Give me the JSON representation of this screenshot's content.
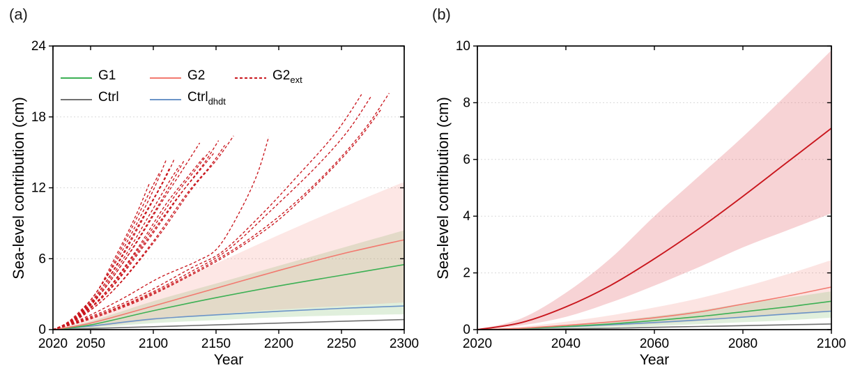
{
  "panels": [
    {
      "letter": "(a)"
    },
    {
      "letter": "(b)"
    }
  ],
  "legend": {
    "position": "top-left-inside-panel-a",
    "entries": [
      {
        "label": "G1",
        "sub": "",
        "color": "#3cb054",
        "style": "solid"
      },
      {
        "label": "G2",
        "sub": "",
        "color": "#f2796f",
        "style": "solid"
      },
      {
        "label": "G2",
        "sub": "ext",
        "color": "#c9161d",
        "style": "dashed"
      },
      {
        "label": "Ctrl",
        "sub": "",
        "color": "#707070",
        "style": "solid"
      },
      {
        "label": "Ctrl",
        "sub": "dhdt",
        "color": "#6b94c8",
        "style": "solid"
      }
    ]
  },
  "colors": {
    "g1_green": "#3cb054",
    "g2_salmon": "#f2796f",
    "g2ext_red": "#c9161d",
    "ctrl_gray": "#707070",
    "ctrl_dhdt_blue": "#6b94c8",
    "grid": "#d8d8d8",
    "axis": "#000000"
  },
  "chart_data": [
    {
      "type": "line",
      "title": "",
      "xlabel": "Year",
      "ylabel": "Sea-level contribution (cm)",
      "xlim": [
        2020,
        2300
      ],
      "ylim": [
        0,
        24
      ],
      "xticks": [
        2020,
        2050,
        2100,
        2150,
        2200,
        2250,
        2300
      ],
      "yticks": [
        0,
        6,
        12,
        18,
        24
      ],
      "gridlines_y": [
        6,
        12,
        18
      ],
      "grid": "dotted-horizontal",
      "bands": [
        {
          "name": "G1-range",
          "color": "#8cc37c",
          "opacity": 0.27,
          "x": [
            2020,
            2050,
            2100,
            2150,
            2200,
            2250,
            2300
          ],
          "lower": [
            0,
            0.15,
            0.55,
            0.8,
            1.05,
            1.2,
            1.3
          ],
          "upper": [
            0,
            0.7,
            2.4,
            3.9,
            5.4,
            6.9,
            8.4
          ]
        },
        {
          "name": "G2-range",
          "color": "#f2796f",
          "opacity": 0.18,
          "x": [
            2020,
            2050,
            2100,
            2150,
            2200,
            2250,
            2300
          ],
          "lower": [
            0,
            0.2,
            0.8,
            1.3,
            1.7,
            2.0,
            2.3
          ],
          "upper": [
            0,
            1.0,
            3.3,
            5.6,
            8.0,
            10.3,
            12.5
          ]
        }
      ],
      "series": [
        {
          "name": "Ctrl",
          "color": "#707070",
          "width": 1.6,
          "x": [
            2020,
            2050,
            2100,
            2150,
            2200,
            2250,
            2300
          ],
          "y": [
            0,
            0.1,
            0.25,
            0.4,
            0.55,
            0.7,
            0.85
          ]
        },
        {
          "name": "Ctrl_dhdt",
          "color": "#6b94c8",
          "width": 1.6,
          "x": [
            2020,
            2050,
            2100,
            2150,
            2200,
            2250,
            2300
          ],
          "y": [
            0,
            0.3,
            0.9,
            1.25,
            1.55,
            1.8,
            2.0
          ]
        },
        {
          "name": "G1",
          "color": "#3cb054",
          "width": 1.6,
          "x": [
            2020,
            2050,
            2100,
            2150,
            2200,
            2250,
            2300
          ],
          "y": [
            0,
            0.4,
            1.6,
            2.7,
            3.7,
            4.6,
            5.5
          ]
        },
        {
          "name": "G2",
          "color": "#f2796f",
          "width": 1.6,
          "x": [
            2020,
            2050,
            2100,
            2150,
            2200,
            2250,
            2300
          ],
          "y": [
            0,
            0.55,
            2.0,
            3.5,
            5.0,
            6.4,
            7.6
          ]
        }
      ],
      "ensemble": {
        "name": "G2_ext members",
        "color": "#c9161d",
        "width": 1.35,
        "dash": "4 3",
        "members": [
          [
            [
              2020,
              0
            ],
            [
              2030,
              0.5
            ],
            [
              2040,
              1.4
            ],
            [
              2055,
              3.2
            ],
            [
              2070,
              6.2
            ],
            [
              2085,
              9.4
            ],
            [
              2097,
              12.4
            ]
          ],
          [
            [
              2020,
              0
            ],
            [
              2030,
              0.45
            ],
            [
              2042,
              1.5
            ],
            [
              2060,
              4.0
            ],
            [
              2080,
              8.0
            ],
            [
              2095,
              11.2
            ],
            [
              2105,
              13.3
            ]
          ],
          [
            [
              2020,
              0
            ],
            [
              2032,
              0.6
            ],
            [
              2045,
              1.8
            ],
            [
              2065,
              4.8
            ],
            [
              2085,
              8.6
            ],
            [
              2100,
              11.8
            ],
            [
              2110,
              14.3
            ]
          ],
          [
            [
              2020,
              0
            ],
            [
              2032,
              0.5
            ],
            [
              2048,
              2.0
            ],
            [
              2068,
              5.0
            ],
            [
              2090,
              9.2
            ],
            [
              2105,
              12.0
            ],
            [
              2113,
              13.7
            ]
          ],
          [
            [
              2020,
              0
            ],
            [
              2033,
              0.6
            ],
            [
              2050,
              2.3
            ],
            [
              2072,
              5.6
            ],
            [
              2095,
              10.0
            ],
            [
              2110,
              12.9
            ],
            [
              2117,
              14.5
            ]
          ],
          [
            [
              2020,
              0
            ],
            [
              2034,
              0.7
            ],
            [
              2052,
              2.4
            ],
            [
              2075,
              5.8
            ],
            [
              2098,
              9.9
            ],
            [
              2112,
              12.4
            ],
            [
              2121,
              13.9
            ]
          ],
          [
            [
              2020,
              0
            ],
            [
              2034,
              0.6
            ],
            [
              2054,
              2.5
            ],
            [
              2078,
              6.0
            ],
            [
              2100,
              9.8
            ],
            [
              2115,
              12.5
            ],
            [
              2125,
              14.4
            ]
          ],
          [
            [
              2020,
              0
            ],
            [
              2035,
              0.8
            ],
            [
              2056,
              2.8
            ],
            [
              2082,
              6.6
            ],
            [
              2105,
              10.5
            ],
            [
              2122,
              13.3
            ],
            [
              2137,
              15.8
            ]
          ],
          [
            [
              2020,
              0
            ],
            [
              2035,
              0.7
            ],
            [
              2058,
              2.7
            ],
            [
              2085,
              6.5
            ],
            [
              2110,
              10.6
            ],
            [
              2128,
              13.0
            ],
            [
              2141,
              14.7
            ]
          ],
          [
            [
              2020,
              0
            ],
            [
              2036,
              0.8
            ],
            [
              2060,
              2.9
            ],
            [
              2088,
              6.8
            ],
            [
              2115,
              11.0
            ],
            [
              2132,
              13.3
            ],
            [
              2145,
              15.1
            ]
          ],
          [
            [
              2020,
              0
            ],
            [
              2036,
              0.7
            ],
            [
              2062,
              3.0
            ],
            [
              2090,
              6.9
            ],
            [
              2118,
              11.0
            ],
            [
              2135,
              13.2
            ],
            [
              2148,
              14.9
            ]
          ],
          [
            [
              2020,
              0
            ],
            [
              2037,
              0.8
            ],
            [
              2064,
              3.2
            ],
            [
              2094,
              7.3
            ],
            [
              2122,
              11.5
            ],
            [
              2140,
              14.0
            ],
            [
              2152,
              16.0
            ]
          ],
          [
            [
              2020,
              0
            ],
            [
              2037,
              0.7
            ],
            [
              2066,
              3.1
            ],
            [
              2098,
              7.2
            ],
            [
              2126,
              11.4
            ],
            [
              2145,
              13.8
            ],
            [
              2157,
              15.6
            ]
          ],
          [
            [
              2020,
              0
            ],
            [
              2038,
              0.8
            ],
            [
              2068,
              3.3
            ],
            [
              2102,
              7.6
            ],
            [
              2130,
              11.8
            ],
            [
              2150,
              14.3
            ],
            [
              2164,
              16.4
            ]
          ],
          [
            [
              2020,
              0
            ],
            [
              2045,
              1.0
            ],
            [
              2075,
              2.6
            ],
            [
              2105,
              4.4
            ],
            [
              2135,
              5.8
            ],
            [
              2152,
              7.0
            ],
            [
              2170,
              10.2
            ],
            [
              2183,
              13.2
            ],
            [
              2192,
              16.3
            ]
          ],
          [
            [
              2020,
              0
            ],
            [
              2050,
              1.1
            ],
            [
              2090,
              2.9
            ],
            [
              2130,
              5.2
            ],
            [
              2155,
              6.6
            ],
            [
              2185,
              9.6
            ],
            [
              2215,
              13.0
            ],
            [
              2245,
              16.6
            ],
            [
              2266,
              19.9
            ]
          ],
          [
            [
              2020,
              0
            ],
            [
              2050,
              1.0
            ],
            [
              2090,
              2.7
            ],
            [
              2130,
              4.9
            ],
            [
              2160,
              6.8
            ],
            [
              2195,
              10.2
            ],
            [
              2230,
              13.8
            ],
            [
              2255,
              16.8
            ],
            [
              2274,
              19.8
            ]
          ],
          [
            [
              2020,
              0
            ],
            [
              2050,
              0.9
            ],
            [
              2090,
              2.5
            ],
            [
              2130,
              4.6
            ],
            [
              2165,
              6.7
            ],
            [
              2200,
              9.3
            ],
            [
              2235,
              12.8
            ],
            [
              2262,
              15.9
            ],
            [
              2282,
              18.7
            ]
          ],
          [
            [
              2020,
              0
            ],
            [
              2050,
              1.0
            ],
            [
              2090,
              2.6
            ],
            [
              2135,
              5.0
            ],
            [
              2170,
              7.2
            ],
            [
              2205,
              10.0
            ],
            [
              2240,
              13.5
            ],
            [
              2268,
              16.9
            ],
            [
              2288,
              20.0
            ]
          ]
        ]
      }
    },
    {
      "type": "line",
      "title": "",
      "xlabel": "Year",
      "ylabel": "Sea-level contribution (cm)",
      "xlim": [
        2020,
        2100
      ],
      "ylim": [
        0,
        10
      ],
      "xticks": [
        2020,
        2040,
        2060,
        2080,
        2100
      ],
      "yticks": [
        0,
        2,
        4,
        6,
        8,
        10
      ],
      "gridlines_y": [
        2,
        4,
        6,
        8
      ],
      "grid": "dotted-horizontal",
      "bands": [
        {
          "name": "G2ext-range",
          "color": "#e56e73",
          "opacity": 0.3,
          "x": [
            2020,
            2030,
            2040,
            2050,
            2060,
            2070,
            2080,
            2090,
            2100
          ],
          "lower": [
            0,
            0.15,
            0.45,
            0.95,
            1.55,
            2.2,
            2.9,
            3.5,
            4.1
          ],
          "upper": [
            0,
            0.4,
            1.3,
            2.5,
            4.0,
            5.4,
            6.8,
            8.3,
            9.85
          ]
        },
        {
          "name": "G2-range",
          "color": "#f2796f",
          "opacity": 0.2,
          "x": [
            2020,
            2030,
            2040,
            2050,
            2060,
            2070,
            2080,
            2090,
            2100
          ],
          "lower": [
            0,
            0.02,
            0.07,
            0.13,
            0.2,
            0.3,
            0.42,
            0.52,
            0.62
          ],
          "upper": [
            0,
            0.1,
            0.28,
            0.5,
            0.78,
            1.1,
            1.5,
            1.95,
            2.45
          ]
        },
        {
          "name": "G1-range",
          "color": "#8cc37c",
          "opacity": 0.27,
          "x": [
            2020,
            2030,
            2040,
            2050,
            2060,
            2070,
            2080,
            2090,
            2100
          ],
          "lower": [
            0,
            0.01,
            0.04,
            0.08,
            0.13,
            0.19,
            0.26,
            0.33,
            0.42
          ],
          "upper": [
            0,
            0.07,
            0.17,
            0.3,
            0.47,
            0.67,
            0.92,
            1.12,
            1.35
          ]
        }
      ],
      "series": [
        {
          "name": "Ctrl",
          "color": "#707070",
          "width": 1.6,
          "x": [
            2020,
            2030,
            2040,
            2050,
            2060,
            2070,
            2080,
            2090,
            2100
          ],
          "y": [
            0,
            0.01,
            0.03,
            0.05,
            0.08,
            0.11,
            0.14,
            0.17,
            0.2
          ]
        },
        {
          "name": "Ctrl_dhdt",
          "color": "#6b94c8",
          "width": 1.6,
          "x": [
            2020,
            2030,
            2040,
            2050,
            2060,
            2070,
            2080,
            2090,
            2100
          ],
          "y": [
            0,
            0.04,
            0.1,
            0.17,
            0.25,
            0.34,
            0.44,
            0.55,
            0.65
          ]
        },
        {
          "name": "G1",
          "color": "#3cb054",
          "width": 1.6,
          "x": [
            2020,
            2030,
            2040,
            2050,
            2060,
            2070,
            2080,
            2090,
            2100
          ],
          "y": [
            0,
            0.04,
            0.11,
            0.2,
            0.32,
            0.46,
            0.63,
            0.8,
            1.0
          ]
        },
        {
          "name": "G2",
          "color": "#f2796f",
          "width": 1.6,
          "x": [
            2020,
            2030,
            2040,
            2050,
            2060,
            2070,
            2080,
            2090,
            2100
          ],
          "y": [
            0,
            0.05,
            0.15,
            0.27,
            0.42,
            0.62,
            0.9,
            1.18,
            1.5
          ]
        },
        {
          "name": "G2_ext mean",
          "color": "#c9161d",
          "width": 1.9,
          "x": [
            2020,
            2030,
            2040,
            2050,
            2060,
            2070,
            2080,
            2090,
            2100
          ],
          "y": [
            0,
            0.25,
            0.8,
            1.55,
            2.5,
            3.55,
            4.7,
            5.9,
            7.1
          ]
        }
      ]
    }
  ]
}
